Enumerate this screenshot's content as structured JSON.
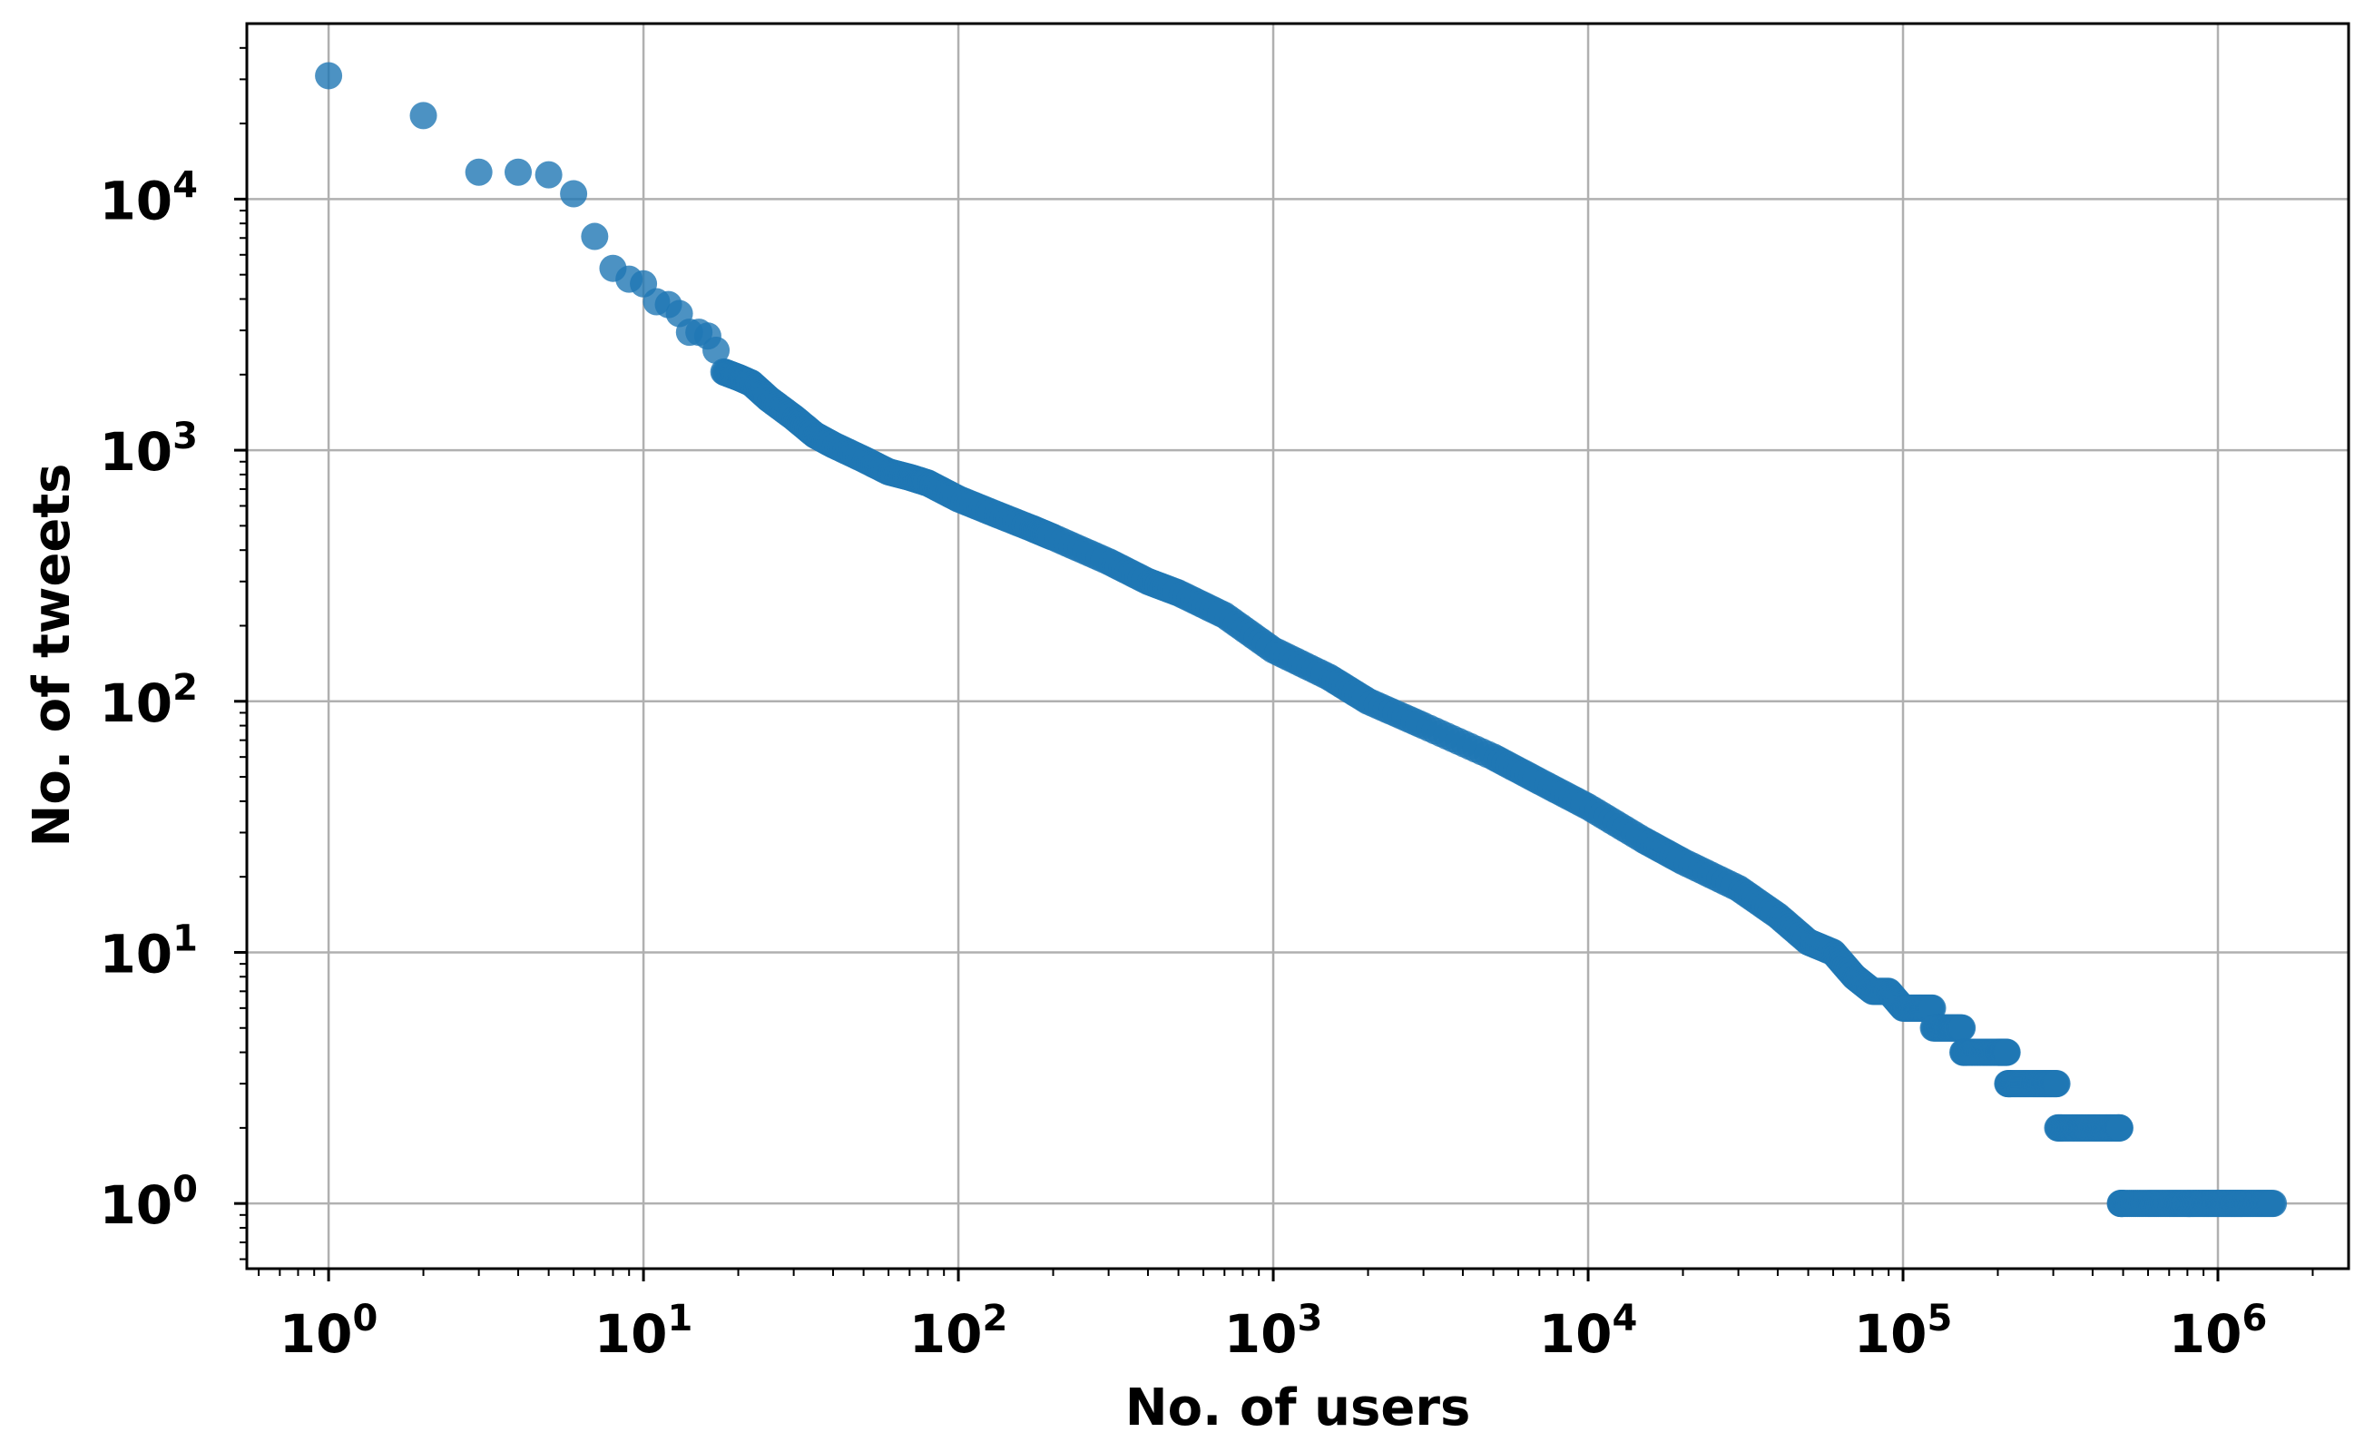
{
  "chart_data": {
    "type": "scatter",
    "title": "",
    "xlabel": "No. of users",
    "ylabel": "No. of tweets",
    "xscale": "log",
    "yscale": "log",
    "xlim": [
      0.55,
      2600000
    ],
    "ylim": [
      0.55,
      50000
    ],
    "grid": true,
    "marker_color": "#1f77b4",
    "x_ticks": [
      {
        "value": 1,
        "base": "10",
        "exp": "0"
      },
      {
        "value": 10,
        "base": "10",
        "exp": "1"
      },
      {
        "value": 100,
        "base": "10",
        "exp": "2"
      },
      {
        "value": 1000,
        "base": "10",
        "exp": "3"
      },
      {
        "value": 10000,
        "base": "10",
        "exp": "4"
      },
      {
        "value": 100000,
        "base": "10",
        "exp": "5"
      },
      {
        "value": 1000000,
        "base": "10",
        "exp": "6"
      }
    ],
    "y_ticks": [
      {
        "value": 1,
        "base": "10",
        "exp": "0"
      },
      {
        "value": 10,
        "base": "10",
        "exp": "1"
      },
      {
        "value": 100,
        "base": "10",
        "exp": "2"
      },
      {
        "value": 1000,
        "base": "10",
        "exp": "3"
      },
      {
        "value": 10000,
        "base": "10",
        "exp": "4"
      }
    ],
    "series": [
      {
        "points": [
          [
            1,
            31000
          ],
          [
            2,
            21500
          ],
          [
            3,
            12800
          ],
          [
            4,
            12800
          ],
          [
            5,
            12500
          ],
          [
            6,
            10500
          ],
          [
            7,
            7100
          ],
          [
            8,
            5300
          ],
          [
            9,
            4800
          ],
          [
            10,
            4600
          ],
          [
            11,
            3900
          ],
          [
            12,
            3800
          ],
          [
            13,
            3500
          ],
          [
            14,
            2950
          ],
          [
            15,
            2950
          ],
          [
            16,
            2850
          ],
          [
            17,
            2500
          ],
          [
            18,
            2050
          ],
          [
            20,
            1950
          ],
          [
            22,
            1850
          ],
          [
            25,
            1600
          ],
          [
            30,
            1350
          ],
          [
            35,
            1150
          ],
          [
            40,
            1050
          ],
          [
            50,
            920
          ],
          [
            60,
            820
          ],
          [
            70,
            780
          ],
          [
            80,
            740
          ],
          [
            100,
            640
          ],
          [
            130,
            560
          ],
          [
            170,
            490
          ],
          [
            200,
            450
          ],
          [
            300,
            360
          ],
          [
            400,
            300
          ],
          [
            500,
            270
          ],
          [
            700,
            220
          ],
          [
            1000,
            160
          ],
          [
            1500,
            125
          ],
          [
            2000,
            100
          ],
          [
            3000,
            80
          ],
          [
            5000,
            60
          ],
          [
            7000,
            48
          ],
          [
            10000,
            38
          ],
          [
            15000,
            28
          ],
          [
            20000,
            23
          ],
          [
            30000,
            18
          ],
          [
            40000,
            14
          ],
          [
            50000,
            11
          ],
          [
            60000,
            10
          ],
          [
            70000,
            8
          ],
          [
            80000,
            7
          ],
          [
            90000,
            7
          ],
          [
            100000,
            6
          ],
          [
            110000,
            6
          ],
          [
            120000,
            6
          ],
          [
            130000,
            5
          ],
          [
            140000,
            5
          ],
          [
            150000,
            5
          ],
          [
            160000,
            4
          ],
          [
            180000,
            4
          ],
          [
            200000,
            4
          ],
          [
            210000,
            4
          ],
          [
            220000,
            3
          ],
          [
            240000,
            3
          ],
          [
            260000,
            3
          ],
          [
            280000,
            3
          ],
          [
            300000,
            3
          ],
          [
            320000,
            2
          ],
          [
            360000,
            2
          ],
          [
            400000,
            2
          ],
          [
            440000,
            2
          ],
          [
            480000,
            2
          ],
          [
            500000,
            1
          ],
          [
            600000,
            1
          ],
          [
            700000,
            1
          ],
          [
            800000,
            1
          ],
          [
            900000,
            1
          ],
          [
            1000000,
            1
          ],
          [
            1100000,
            1
          ],
          [
            1200000,
            1
          ],
          [
            1350000,
            1
          ],
          [
            1500000,
            1
          ]
        ]
      }
    ]
  }
}
